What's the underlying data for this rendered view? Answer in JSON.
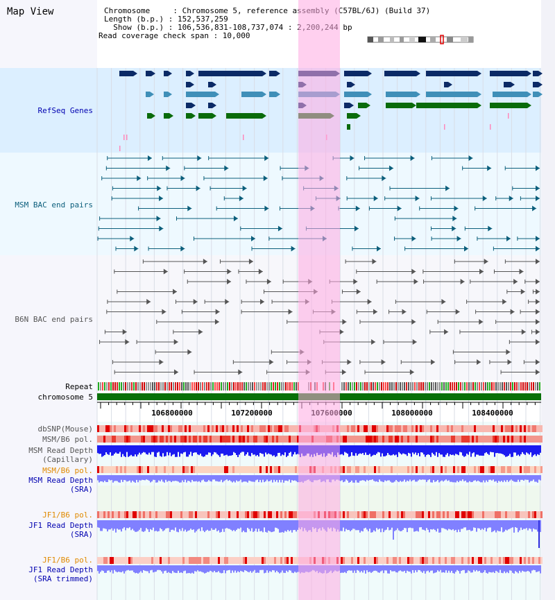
{
  "title": "Map View",
  "header": {
    "chromosome_line": "Chromosome     : Chromosome 5, reference assembly (C57BL/6J) (Build 37)",
    "length_line": "Length (b.p.) : 152,537,259",
    "show_line": "  Show (b.p.) : 106,536,831-108,737,074 : 2,200,244 bp",
    "span_line": "Read coverage check span : 10,000"
  },
  "tracks": {
    "refseq": "RefSeq Genes",
    "msm_bac": "MSM BAC end pairs",
    "b6n_bac": "B6N BAC end pairs",
    "repeat": "Repeat",
    "chromosome": "chromosome 5",
    "dbsnp": "dbSNP(Mouse)",
    "msm_b6_pol_1": "MSM/B6 pol.",
    "msm_read_depth_cap_1": "MSM Read Depth",
    "msm_read_depth_cap_2": "(Capillary)",
    "msm_b6_pol_2": "MSM/B6 pol.",
    "msm_read_depth_sra_1": "MSM Read Depth",
    "msm_read_depth_sra_2": "(SRA)",
    "jf1_b6_pol_1": "JF1/B6 pol.",
    "jf1_read_depth_sra_1": "JF1 Read Depth",
    "jf1_read_depth_sra_2": "(SRA)",
    "jf1_b6_pol_2": "JF1/B6 pol.",
    "jf1_read_depth_trim_1": "JF1 Read Depth",
    "jf1_read_depth_trim_2": "(SRA trimmed)"
  },
  "axis": {
    "ticks": [
      "106800000",
      "107200000",
      "107600000",
      "108000000",
      "108400000"
    ]
  },
  "colors": {
    "refseq_dark": "#0b2a66",
    "refseq_mid": "#3f8fb8",
    "refseq_green": "#0a6b0a",
    "bac_msm": "#0b5e7b",
    "bac_b6n": "#555555",
    "highlight": "#ffaae1",
    "chromosome_bar": "#087008",
    "depth_cap": "#1b1bf0",
    "depth_sra": "#8080ff"
  }
}
